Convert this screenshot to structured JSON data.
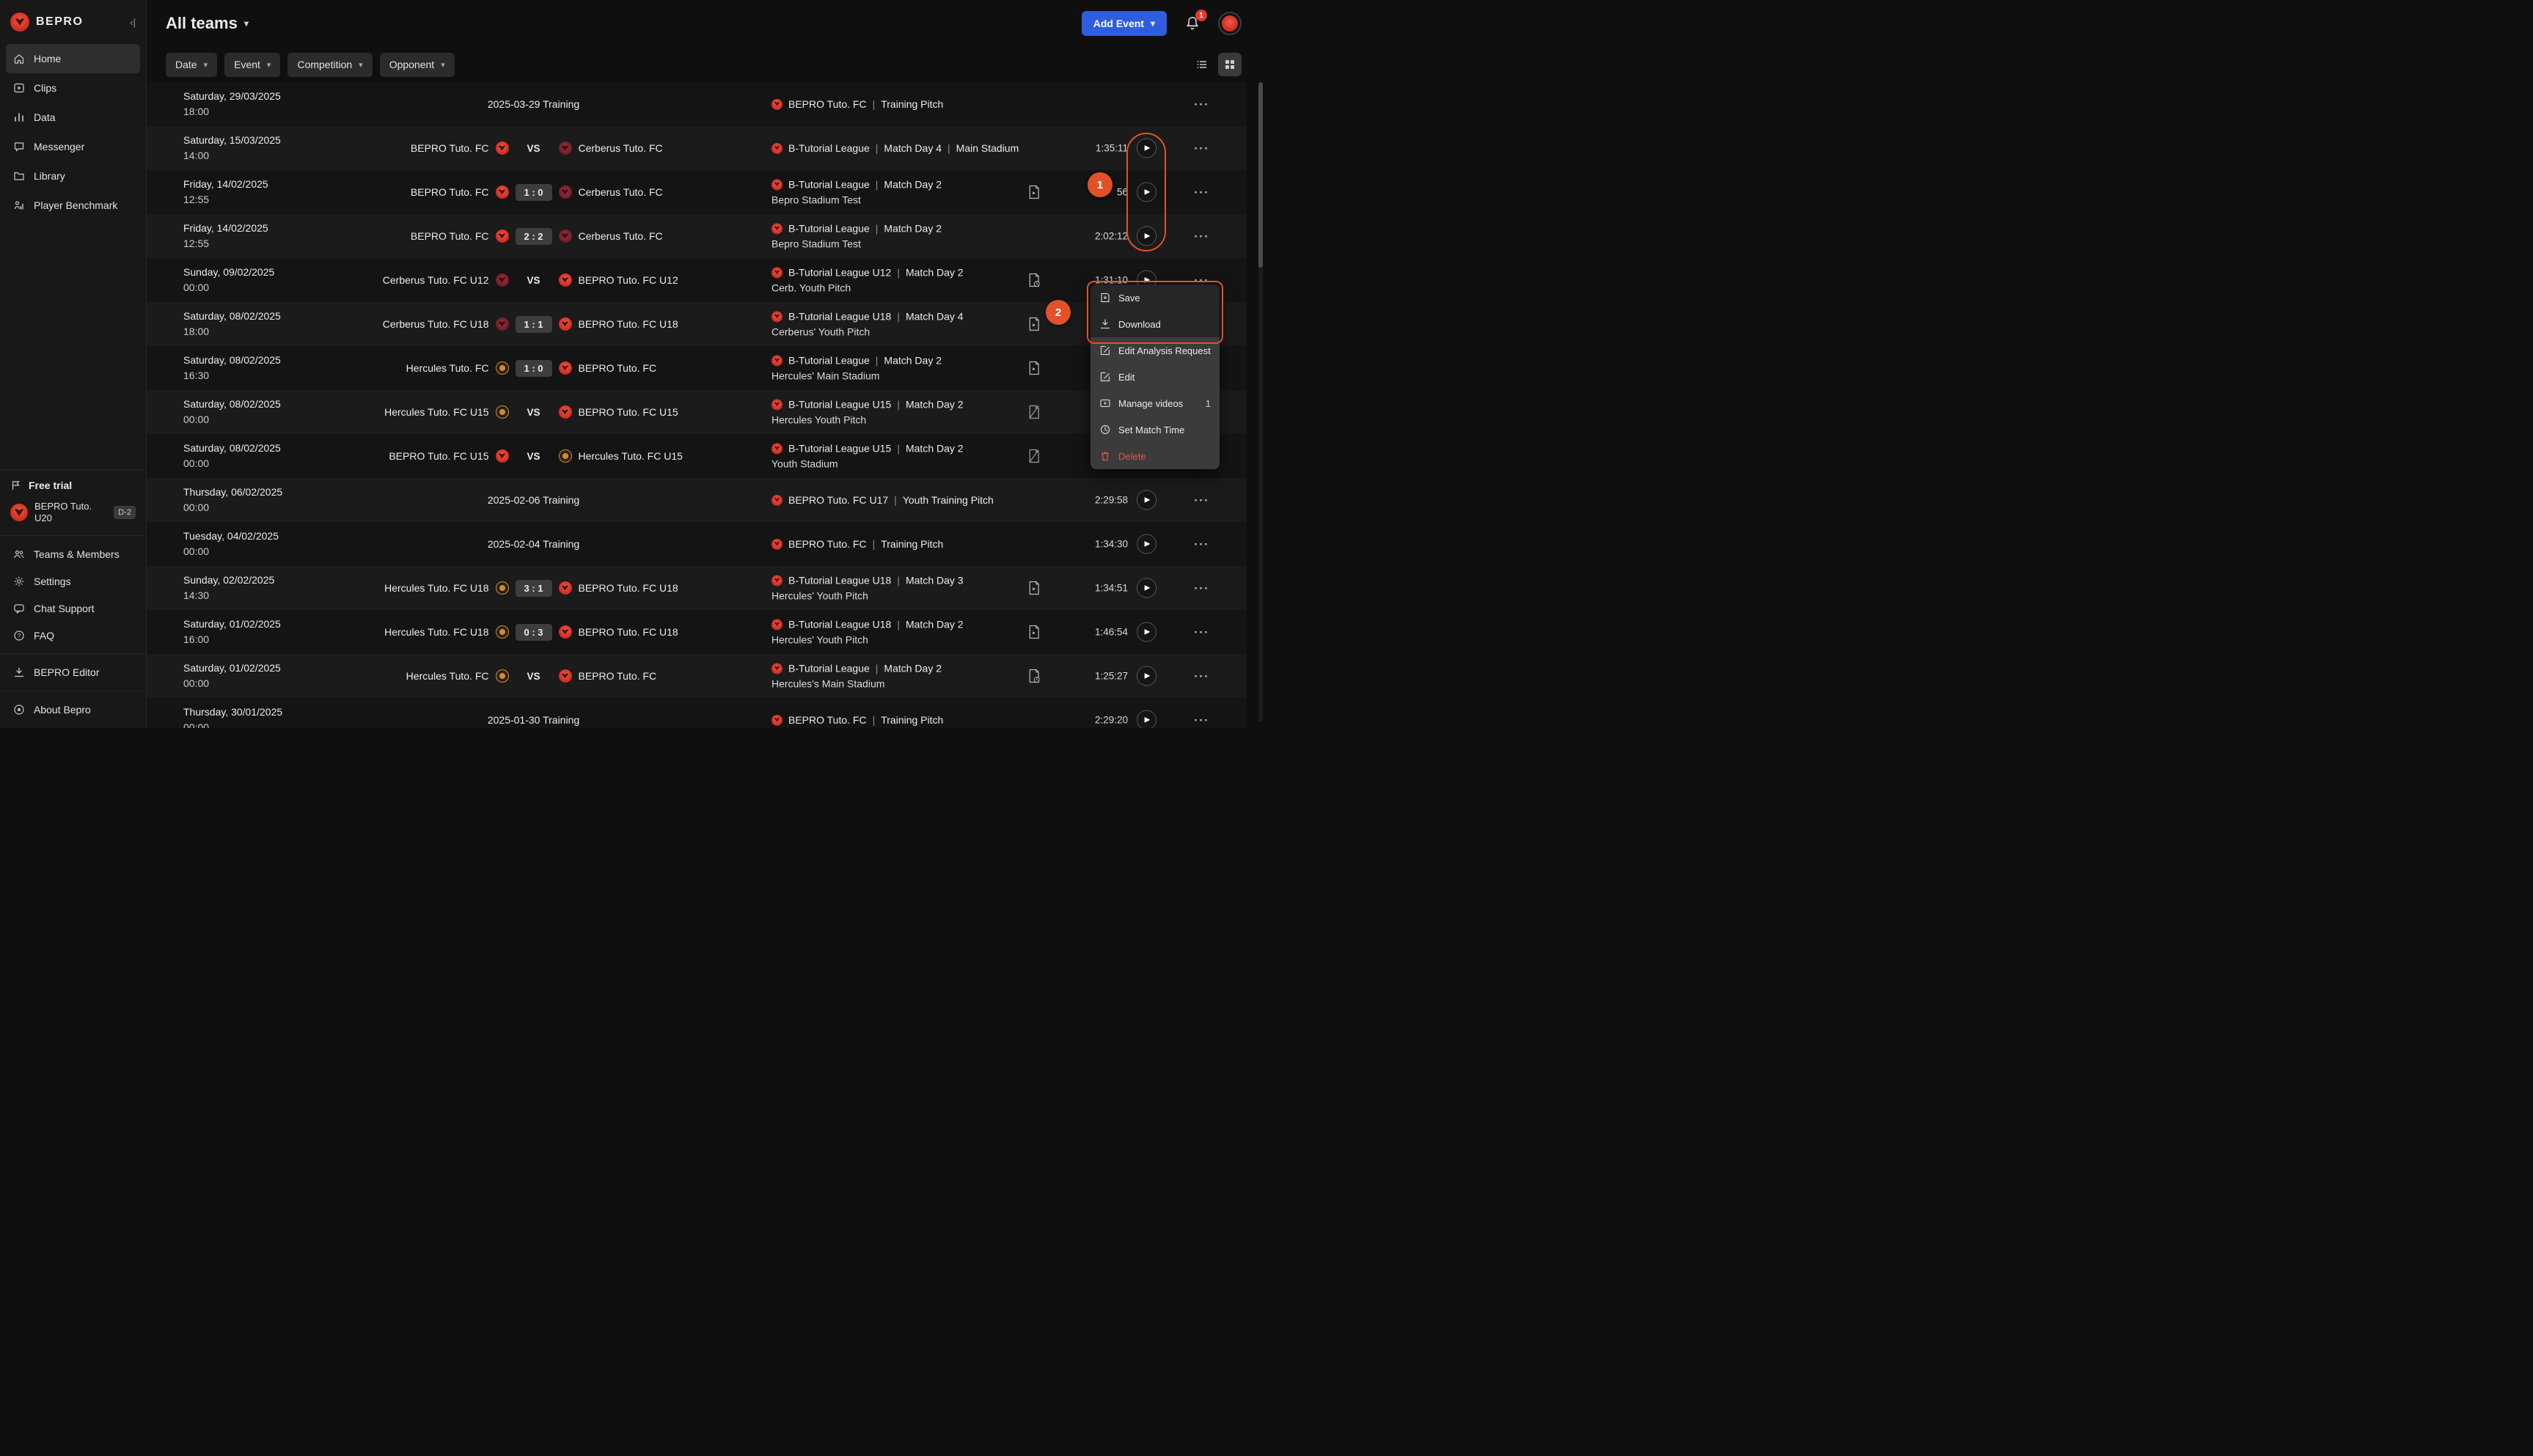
{
  "brand": {
    "name": "BEPRO"
  },
  "glyphs": {
    "caret": "▾",
    "more": "⋯",
    "play": "▶",
    "collapse": "‹|"
  },
  "icons": {
    "bell": "bell-icon",
    "flag": "flag-icon",
    "list_view": "list-icon",
    "grid_view": "grid-icon",
    "editor": "download-icon",
    "about": "logo-icon"
  },
  "colors": {
    "accent_blue": "#2e5de0",
    "brand_red": "#d63427",
    "annotation_orange": "#e2512a",
    "danger_red": "#e2574f"
  },
  "sidebar": {
    "nav": [
      {
        "label": "Home",
        "icon": "home-icon",
        "active": true
      },
      {
        "label": "Clips",
        "icon": "clips-icon",
        "active": false
      },
      {
        "label": "Data",
        "icon": "data-icon",
        "active": false
      },
      {
        "label": "Messenger",
        "icon": "messenger-icon",
        "active": false
      },
      {
        "label": "Library",
        "icon": "library-icon",
        "active": false
      },
      {
        "label": "Player Benchmark",
        "icon": "benchmark-icon",
        "active": false
      }
    ],
    "trial": {
      "title": "Free trial",
      "team_line1": "BEPRO Tuto.",
      "team_line2": "U20",
      "badge": "D-2"
    },
    "secondary": [
      {
        "label": "Teams & Members",
        "icon": "people-icon"
      },
      {
        "label": "Settings",
        "icon": "gear-icon"
      },
      {
        "label": "Chat Support",
        "icon": "chat-icon"
      },
      {
        "label": "FAQ",
        "icon": "faq-icon"
      }
    ],
    "editor": {
      "label": "BEPRO Editor"
    },
    "about": {
      "label": "About Bepro"
    }
  },
  "header": {
    "title": "All teams",
    "add_event_label": "Add Event",
    "notification_count": "1"
  },
  "filters": [
    {
      "label": "Date"
    },
    {
      "label": "Event"
    },
    {
      "label": "Competition"
    },
    {
      "label": "Opponent"
    }
  ],
  "events": [
    {
      "date": "Saturday, 29/03/2025",
      "time": "18:00",
      "kind": "training",
      "title": "2025-03-29 Training",
      "info": {
        "parts": [
          "BEPRO Tuto. FC",
          "Training Pitch"
        ],
        "line2": ""
      },
      "file": "",
      "duration": "",
      "play": false
    },
    {
      "date": "Saturday, 15/03/2025",
      "time": "14:00",
      "kind": "match",
      "home": {
        "name": "BEPRO Tuto. FC",
        "logo": "bepro"
      },
      "away": {
        "name": "Cerberus Tuto. FC",
        "logo": "cerberus"
      },
      "score": "",
      "vs": "VS",
      "info": {
        "parts": [
          "B-Tutorial League",
          "Match Day 4",
          "Main Stadium"
        ],
        "line2": ""
      },
      "file": "",
      "duration": "1:35:11",
      "play": true
    },
    {
      "date": "Friday, 14/02/2025",
      "time": "12:55",
      "kind": "match",
      "home": {
        "name": "BEPRO Tuto. FC",
        "logo": "bepro"
      },
      "away": {
        "name": "Cerberus Tuto. FC",
        "logo": "cerberus"
      },
      "score": "1 : 0",
      "vs": "",
      "info": {
        "parts": [
          "B-Tutorial League",
          "Match Day 2"
        ],
        "line2": "Bepro Stadium Test"
      },
      "file": "file",
      "duration": "56",
      "play": true
    },
    {
      "date": "Friday, 14/02/2025",
      "time": "12:55",
      "kind": "match",
      "home": {
        "name": "BEPRO Tuto. FC",
        "logo": "bepro"
      },
      "away": {
        "name": "Cerberus Tuto. FC",
        "logo": "cerberus"
      },
      "score": "2 : 2",
      "vs": "",
      "info": {
        "parts": [
          "B-Tutorial League",
          "Match Day 2"
        ],
        "line2": "Bepro Stadium Test"
      },
      "file": "",
      "duration": "2:02:12",
      "play": true
    },
    {
      "date": "Sunday, 09/02/2025",
      "time": "00:00",
      "kind": "match",
      "home": {
        "name": "Cerberus Tuto. FC U12",
        "logo": "cerberus"
      },
      "away": {
        "name": "BEPRO Tuto. FC U12",
        "logo": "bepro"
      },
      "score": "",
      "vs": "VS",
      "info": {
        "parts": [
          "B-Tutorial League U12",
          "Match Day 2"
        ],
        "line2": "Cerb. Youth Pitch"
      },
      "file": "file-clock",
      "duration": "1:31:10",
      "play": true
    },
    {
      "date": "Saturday, 08/02/2025",
      "time": "18:00",
      "kind": "match",
      "home": {
        "name": "Cerberus Tuto. FC U18",
        "logo": "cerberus"
      },
      "away": {
        "name": "BEPRO Tuto. FC U18",
        "logo": "bepro"
      },
      "score": "1 : 1",
      "vs": "",
      "info": {
        "parts": [
          "B-Tutorial League U18",
          "Match Day 4"
        ],
        "line2": "Cerberus' Youth Pitch"
      },
      "file": "file",
      "duration": "",
      "play": false
    },
    {
      "date": "Saturday, 08/02/2025",
      "time": "16:30",
      "kind": "match",
      "home": {
        "name": "Hercules Tuto. FC",
        "logo": "hercules"
      },
      "away": {
        "name": "BEPRO Tuto. FC",
        "logo": "bepro"
      },
      "score": "1 : 0",
      "vs": "",
      "info": {
        "parts": [
          "B-Tutorial League",
          "Match Day 2"
        ],
        "line2": "Hercules' Main Stadium"
      },
      "file": "file",
      "duration": "",
      "play": false
    },
    {
      "date": "Saturday, 08/02/2025",
      "time": "00:00",
      "kind": "match",
      "home": {
        "name": "Hercules Tuto. FC U15",
        "logo": "hercules"
      },
      "away": {
        "name": "BEPRO Tuto. FC U15",
        "logo": "bepro"
      },
      "score": "",
      "vs": "VS",
      "info": {
        "parts": [
          "B-Tutorial League U15",
          "Match Day 2"
        ],
        "line2": "Hercules Youth Pitch"
      },
      "file": "file-slash",
      "duration": "",
      "play": false
    },
    {
      "date": "Saturday, 08/02/2025",
      "time": "00:00",
      "kind": "match",
      "home": {
        "name": "BEPRO Tuto. FC U15",
        "logo": "bepro"
      },
      "away": {
        "name": "Hercules Tuto. FC U15",
        "logo": "hercules"
      },
      "score": "",
      "vs": "VS",
      "info": {
        "parts": [
          "B-Tutorial League U15",
          "Match Day 2"
        ],
        "line2": "Youth Stadium"
      },
      "file": "file-slash",
      "duration": "",
      "play": false
    },
    {
      "date": "Thursday, 06/02/2025",
      "time": "00:00",
      "kind": "training",
      "title": "2025-02-06 Training",
      "info": {
        "parts": [
          "BEPRO Tuto. FC U17",
          "Youth Training Pitch"
        ],
        "line2": ""
      },
      "file": "",
      "duration": "2:29:58",
      "play": true
    },
    {
      "date": "Tuesday, 04/02/2025",
      "time": "00:00",
      "kind": "training",
      "title": "2025-02-04 Training",
      "info": {
        "parts": [
          "BEPRO Tuto. FC",
          "Training Pitch"
        ],
        "line2": ""
      },
      "file": "",
      "duration": "1:34:30",
      "play": true
    },
    {
      "date": "Sunday, 02/02/2025",
      "time": "14:30",
      "kind": "match",
      "home": {
        "name": "Hercules Tuto. FC U18",
        "logo": "hercules"
      },
      "away": {
        "name": "BEPRO Tuto. FC U18",
        "logo": "bepro"
      },
      "score": "3 : 1",
      "vs": "",
      "info": {
        "parts": [
          "B-Tutorial League U18",
          "Match Day 3"
        ],
        "line2": "Hercules' Youth Pitch"
      },
      "file": "file",
      "duration": "1:34:51",
      "play": true
    },
    {
      "date": "Saturday, 01/02/2025",
      "time": "16:00",
      "kind": "match",
      "home": {
        "name": "Hercules Tuto. FC U18",
        "logo": "hercules"
      },
      "away": {
        "name": "BEPRO Tuto. FC U18",
        "logo": "bepro"
      },
      "score": "0 : 3",
      "vs": "",
      "info": {
        "parts": [
          "B-Tutorial League U18",
          "Match Day 2"
        ],
        "line2": "Hercules' Youth Pitch"
      },
      "file": "file",
      "duration": "1:46:54",
      "play": true
    },
    {
      "date": "Saturday, 01/02/2025",
      "time": "00:00",
      "kind": "match",
      "home": {
        "name": "Hercules Tuto. FC",
        "logo": "hercules"
      },
      "away": {
        "name": "BEPRO Tuto. FC",
        "logo": "bepro"
      },
      "score": "",
      "vs": "VS",
      "info": {
        "parts": [
          "B-Tutorial League",
          "Match Day 2"
        ],
        "line2": "Hercules's Main Stadium"
      },
      "file": "file-clock",
      "duration": "1:25:27",
      "play": true
    },
    {
      "date": "Thursday, 30/01/2025",
      "time": "00:00",
      "kind": "training",
      "title": "2025-01-30 Training",
      "info": {
        "parts": [
          "BEPRO Tuto. FC",
          "Training Pitch"
        ],
        "line2": ""
      },
      "file": "",
      "duration": "2:29:20",
      "play": true
    }
  ],
  "context_menu": {
    "items": [
      {
        "label": "Save",
        "icon": "save-icon",
        "group": "top",
        "badge": "",
        "danger": false
      },
      {
        "label": "Download",
        "icon": "download-icon",
        "group": "top",
        "badge": "",
        "danger": false
      },
      {
        "label": "Edit Analysis Request",
        "icon": "edit-icon",
        "group": "rest",
        "badge": "",
        "danger": false
      },
      {
        "label": "Edit",
        "icon": "edit-icon",
        "group": "rest",
        "badge": "",
        "danger": false
      },
      {
        "label": "Manage videos",
        "icon": "video-icon",
        "group": "rest",
        "badge": "1",
        "danger": false
      },
      {
        "label": "Set Match Time",
        "icon": "clock-icon",
        "group": "rest",
        "badge": "",
        "danger": false
      },
      {
        "label": "Delete",
        "icon": "trash-icon",
        "group": "rest",
        "badge": "",
        "danger": true
      }
    ]
  },
  "annotations": {
    "step1": "1",
    "step2": "2"
  }
}
